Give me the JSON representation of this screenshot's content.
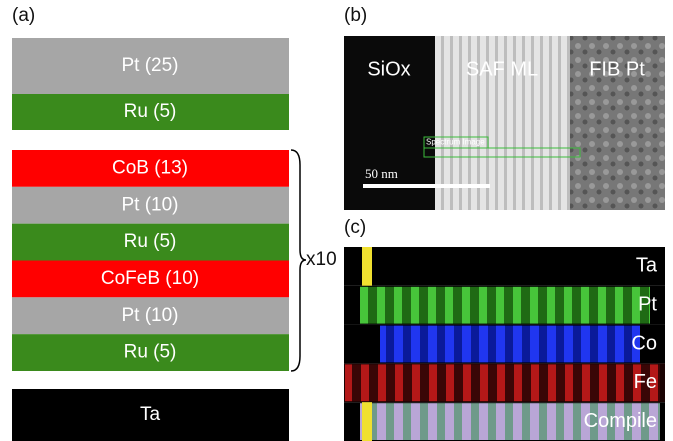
{
  "panel_a": {
    "label": "(a)",
    "top_layers": [
      "Pt (25)",
      "Ru (5)"
    ],
    "repeat_layers": [
      "CoB (13)",
      "Pt (10)",
      "Ru (5)",
      "CoFeB (10)",
      "Pt (10)",
      "Ru (5)"
    ],
    "repeat_label": "x10",
    "bottom_layer": "Ta"
  },
  "panel_b": {
    "label": "(b)",
    "regions": [
      "SiOx",
      "SAF ML",
      "FIB Pt"
    ],
    "box_label": "Spectrum Image",
    "scale_bar": "50 nm"
  },
  "panel_c": {
    "label": "(c)",
    "maps": [
      "Ta",
      "Pt",
      "Co",
      "Fe",
      "Compile"
    ]
  }
}
